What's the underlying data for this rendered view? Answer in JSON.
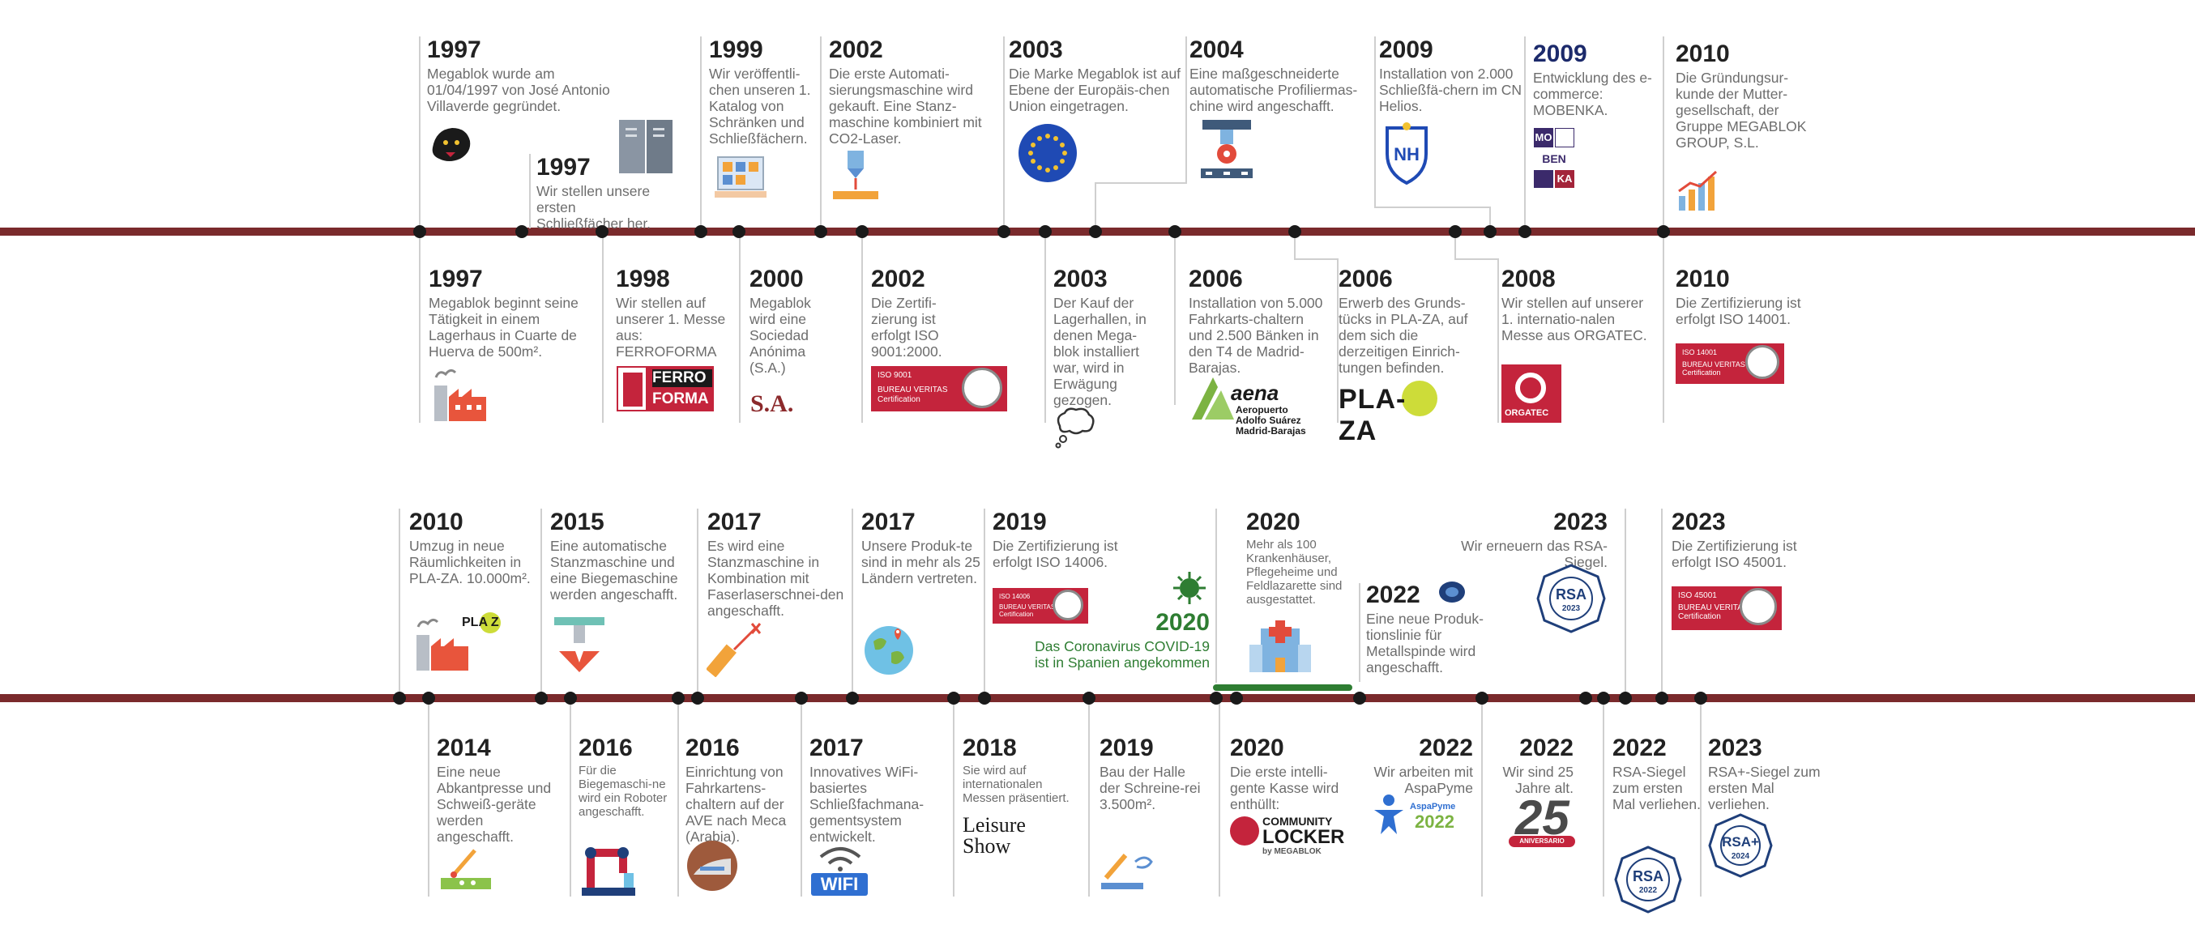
{
  "events": {
    "e1997a": {
      "year": "1997",
      "text": "Megablok wurde am 01/04/1997 von José Antonio Villaverde gegründet."
    },
    "e1997b": {
      "year": "1997",
      "text": "Wir stellen unsere ersten Schließfächer her."
    },
    "e1999": {
      "year": "1999",
      "text": "Wir veröffentli-chen unseren 1. Katalog von Schränken und Schließfächern."
    },
    "e2002a": {
      "year": "2002",
      "text": "Die erste Automati-sierungsmaschine wird gekauft. Eine Stanz-maschine kombiniert mit CO2-Laser."
    },
    "e2003a": {
      "year": "2003",
      "text": "Die Marke Megablok ist auf Ebene der Europäis-chen Union eingetragen."
    },
    "e2004": {
      "year": "2004",
      "text": "Eine maßgeschneiderte automatische Profiliermas-chine wird angeschafft."
    },
    "e2009a": {
      "year": "2009",
      "text": "Installation von 2.000 Schließfä-chern im CN Helios."
    },
    "e2009b": {
      "year": "2009",
      "text": "Entwicklung des e-commerce: MOBENKA."
    },
    "e2010a": {
      "year": "2010",
      "text": "Die Gründungsur-kunde der Mutter-gesellschaft, der Gruppe MEGABLOK GROUP, S.L."
    },
    "e1997c": {
      "year": "1997",
      "text": "Megablok beginnt seine Tätigkeit in einem Lagerhaus in Cuarte  de Huerva de 500m²."
    },
    "e1998": {
      "year": "1998",
      "text": "Wir stellen auf unserer 1. Messe aus: FERROFORMA"
    },
    "e2000": {
      "year": "2000",
      "text": "Megablok wird eine Sociedad Anónima (S.A.)"
    },
    "e2002b": {
      "year": "2002",
      "text": "Die Zertifi-zierung ist erfolgt ISO 9001:2000."
    },
    "e2003b": {
      "year": "2003",
      "text": "Der Kauf der Lagerhallen, in denen Mega-blok installiert war, wird in Erwägung gezogen."
    },
    "e2006a": {
      "year": "2006",
      "text": "Installation von 5.000 Fahrkarts-chaltern und 2.500 Bänken in den T4 de Madrid-Barajas."
    },
    "e2006b": {
      "year": "2006",
      "text": "Erwerb des Grunds-tücks in PLA-ZA, auf dem sich die derzeitigen Einrich-tungen befinden."
    },
    "e2008": {
      "year": "2008",
      "text": "Wir stellen auf unserer 1. internatio-nalen Messe aus ORGATEC."
    },
    "e2010b": {
      "year": "2010",
      "text": "Die Zertifizierung ist erfolgt ISO 14001."
    },
    "e2010c": {
      "year": "2010",
      "text": "Umzug in neue Räumlichkeiten in PLA-ZA. 10.000m²."
    },
    "e2015": {
      "year": "2015",
      "text": "Eine automatische Stanzmaschine und eine Biegemaschine werden angeschafft."
    },
    "e2017a": {
      "year": "2017",
      "text": "Es wird eine Stanzmaschine in Kombination mit Faserlaserschnei-den angeschafft."
    },
    "e2017b": {
      "year": "2017",
      "text": "Unsere Produk-te sind in mehr als 25 Ländern vertreten."
    },
    "e2019a": {
      "year": "2019",
      "text": "Die Zertifizierung ist erfolgt ISO 14006."
    },
    "e2020a": {
      "year": "2020",
      "text": "Das Coronavirus COVID-19 ist in Spanien angekommen"
    },
    "e2020b": {
      "year": "2020",
      "text": "Mehr als 100 Krankenhäuser, Pflegeheime und Feldlazarette sind ausgestattet."
    },
    "e2022a": {
      "year": "2022",
      "text": "Eine neue Produk-tionslinie für Metallspinde wird angeschafft."
    },
    "e2023a": {
      "year": "2023",
      "text": "Wir erneuern das RSA-Siegel."
    },
    "e2023b": {
      "year": "2023",
      "text": "Die Zertifizierung ist erfolgt ISO 45001."
    },
    "e2014": {
      "year": "2014",
      "text": "Eine neue Abkantpresse und Schweiß-geräte werden angeschafft."
    },
    "e2016a": {
      "year": "2016",
      "text": "Für die Biegemaschi-ne wird ein Roboter angeschafft."
    },
    "e2016b": {
      "year": "2016",
      "text": "Einrichtung von Fahrkartens-chaltern auf der AVE nach Meca (Arabia)."
    },
    "e2017c": {
      "year": "2017",
      "text": "Innovatives WiFi-basiertes Schließfachmana-gementsystem entwickelt."
    },
    "e2018": {
      "year": "2018",
      "text": "Sie wird auf internationalen Messen präsentiert."
    },
    "e2019b": {
      "year": "2019",
      "text": "Bau der Halle der Schreine-rei 3.500m²."
    },
    "e2020c": {
      "year": "2020",
      "text": "Die erste intelli-gente Kasse wird enthüllt:"
    },
    "e2022b": {
      "year": "2022",
      "text": "Wir arbeiten mit AspaPyme"
    },
    "e2022c": {
      "year": "2022",
      "text": "Wir sind 25 Jahre alt."
    },
    "e2022d": {
      "year": "2022",
      "text": "RSA-Siegel zum ersten Mal verliehen."
    },
    "e2023c": {
      "year": "2023",
      "text": "RSA+-Siegel zum ersten Mal verliehen."
    }
  },
  "logos": {
    "mobenka": [
      "MO",
      "BEN",
      "KA"
    ],
    "ferroforma_top": "FERRO",
    "ferroforma_bottom": "FORMA",
    "sa": "S.A.",
    "iso9001": "ISO 9001",
    "bureau_veritas": "BUREAU VERITAS",
    "certification": "Certification",
    "iso14001": "ISO 14001",
    "iso14006": "ISO 14006",
    "iso45001": "ISO 45001",
    "aena": "aena",
    "aena_sub": "Aeropuerto Adolfo Suárez Madrid-Barajas",
    "plaza": "PLA-ZA",
    "plaza_small": "PLA Z",
    "orgatec": "ORGATEC",
    "leisure": "Leisure Show",
    "wifi": "WIFI",
    "community": "COMMUNITY",
    "locker": "LOCKER",
    "by_megablok": "by MEGABLOK",
    "aspapyme": "AspaPyme",
    "aspapyme_year": "2022",
    "anniversary": "25",
    "anniversary_sub": "ANIVERSARIO",
    "rsa": "RSA",
    "rsa_2023": "2023",
    "rsa_2022": "2022",
    "rsa_plus": "RSA+",
    "rsa_2024": "2024",
    "nh": "NH"
  },
  "colors": {
    "axis": "#7a2a2c",
    "accent_red": "#c4243c",
    "covid_green": "#2e7d32",
    "navy": "#1c2a6b"
  }
}
